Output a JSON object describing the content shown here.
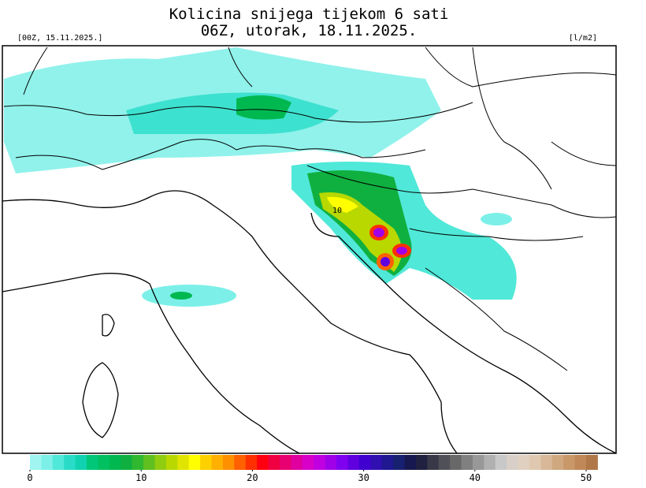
{
  "header": {
    "title_line1": "Kolicina snijega tijekom 6 sati",
    "title_line2": "06Z, utorak, 18.11.2025.",
    "run": "[00Z, 15.11.2025.]",
    "unit": "[l/m2]"
  },
  "map": {
    "contour_label": "10"
  },
  "colorbar": {
    "range": [
      0,
      50
    ],
    "ticks": [
      0,
      10,
      20,
      30,
      40,
      50
    ],
    "colors": [
      "#a0f5f0",
      "#7cf0e8",
      "#50e8d8",
      "#28dcc8",
      "#10d2b0",
      "#00c878",
      "#00c060",
      "#00b850",
      "#10b040",
      "#30b830",
      "#60c020",
      "#90cc10",
      "#b8d800",
      "#e0e400",
      "#ffff00",
      "#ffd000",
      "#ffb000",
      "#ff9000",
      "#ff6000",
      "#ff3000",
      "#ff0010",
      "#f00040",
      "#e80070",
      "#e000a0",
      "#d800c8",
      "#c000e0",
      "#a000e8",
      "#8000f0",
      "#6000e0",
      "#4000d0",
      "#3010b0",
      "#201890",
      "#182070",
      "#181850",
      "#202040",
      "#383848",
      "#505058",
      "#686868",
      "#808080",
      "#989898",
      "#b0b0b0",
      "#c8c8c8",
      "#d8d0c8",
      "#e0d0c0",
      "#e0c8b0",
      "#d8b898",
      "#d0a880",
      "#c89868",
      "#c08858",
      "#b07848"
    ]
  }
}
